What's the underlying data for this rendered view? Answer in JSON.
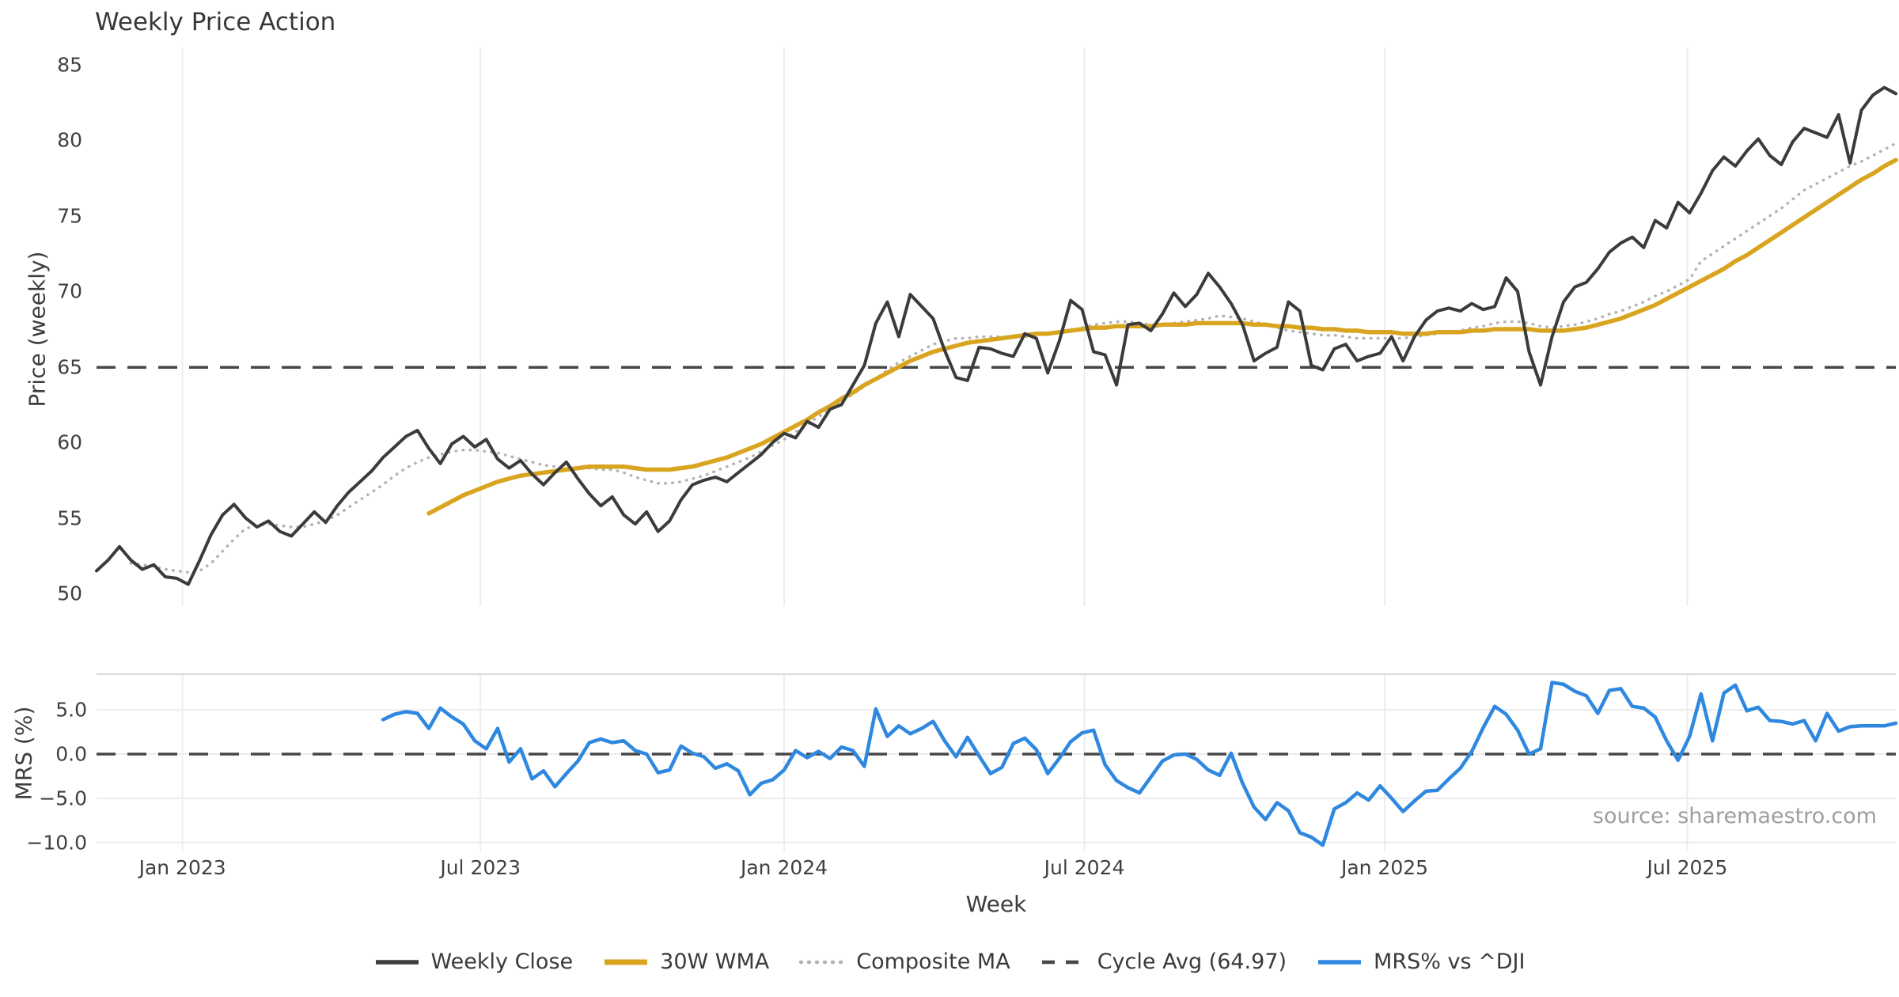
{
  "title": "Weekly Price Action",
  "source": "source: sharemaestro.com",
  "colors": {
    "close": "#3b3b3b",
    "wma": "#d9a521",
    "composite": "#b3b3b3",
    "cycle": "#474747",
    "mrs": "#2f88e0",
    "grid_vertical": "#ededf1",
    "grid_horizontal": "#ececec",
    "panel_spine": "#d9d9de",
    "text": "#3a3a3a",
    "source_text": "#9e9ea2"
  },
  "legend": [
    {
      "label": "Weekly Close",
      "style": "solid",
      "color_key": "close"
    },
    {
      "label": "30W WMA",
      "style": "solid-thick",
      "color_key": "wma"
    },
    {
      "label": "Composite MA",
      "style": "dotted",
      "color_key": "composite"
    },
    {
      "label": "Cycle Avg (64.97)",
      "style": "dashed",
      "color_key": "cycle"
    },
    {
      "label": "MRS% vs ^DJI",
      "style": "solid",
      "color_key": "mrs"
    }
  ],
  "chart_data": {
    "type": "line",
    "title": "Weekly Price Action",
    "x_axis": {
      "label": "Week",
      "unit": "week-index (weekly data, starts mid-Nov 2022)",
      "range": [
        0,
        157
      ],
      "ticks": [
        {
          "label": "Jan 2023",
          "week": 7.5
        },
        {
          "label": "Jul 2023",
          "week": 33.5
        },
        {
          "label": "Jan 2024",
          "week": 60.0
        },
        {
          "label": "Jul 2024",
          "week": 86.2
        },
        {
          "label": "Jan 2025",
          "week": 112.4
        },
        {
          "label": "Jul 2025",
          "week": 138.8
        }
      ],
      "grid": true
    },
    "panels": [
      {
        "id": "price",
        "ylabel": "Price (weekly)",
        "ylim": [
          50,
          85
        ],
        "yticks": [
          {
            "label": "85",
            "value": 85
          },
          {
            "label": "80",
            "value": 80
          },
          {
            "label": "75",
            "value": 75
          },
          {
            "label": "70",
            "value": 70
          },
          {
            "label": "65",
            "value": 65
          },
          {
            "label": "60",
            "value": 60
          },
          {
            "label": "55",
            "value": 55
          },
          {
            "label": "50",
            "value": 50
          }
        ],
        "ref_lines": [
          {
            "name": "Cycle Avg (64.97)",
            "value": 64.97,
            "style": "dashed",
            "color_key": "cycle"
          }
        ],
        "series": [
          {
            "name": "Weekly Close",
            "color_key": "close",
            "style": "solid",
            "width": 4,
            "start_week": 0,
            "values": [
              51.5,
              52.2,
              53.1,
              52.2,
              51.6,
              51.9,
              51.1,
              51.0,
              50.6,
              52.2,
              53.9,
              55.2,
              55.9,
              55.0,
              54.4,
              54.8,
              54.1,
              53.8,
              54.6,
              55.4,
              54.7,
              55.8,
              56.7,
              57.4,
              58.1,
              59.0,
              59.7,
              60.4,
              60.8,
              59.6,
              58.6,
              59.9,
              60.4,
              59.7,
              60.2,
              58.9,
              58.3,
              58.8,
              57.9,
              57.2,
              58.0,
              58.7,
              57.6,
              56.6,
              55.8,
              56.4,
              55.2,
              54.6,
              55.4,
              54.1,
              54.8,
              56.2,
              57.2,
              57.5,
              57.7,
              57.4,
              58.0,
              58.6,
              59.2,
              60.0,
              60.6,
              60.3,
              61.4,
              61.0,
              62.2,
              62.5,
              63.8,
              65.1,
              67.9,
              69.3,
              67.0,
              69.8,
              69.0,
              68.2,
              66.1,
              64.3,
              64.1,
              66.3,
              66.2,
              65.9,
              65.7,
              67.2,
              66.9,
              64.6,
              66.7,
              69.4,
              68.8,
              66.0,
              65.8,
              63.8,
              67.8,
              67.9,
              67.4,
              68.5,
              69.9,
              69.0,
              69.8,
              71.2,
              70.3,
              69.2,
              67.8,
              65.4,
              65.9,
              66.3,
              69.3,
              68.7,
              65.1,
              64.8,
              66.2,
              66.5,
              65.4,
              65.7,
              65.9,
              67.0,
              65.4,
              67.0,
              68.1,
              68.7,
              68.9,
              68.7,
              69.2,
              68.8,
              69.0,
              70.9,
              70.0,
              66.0,
              63.8,
              67.0,
              69.3,
              70.3,
              70.6,
              71.5,
              72.6,
              73.2,
              73.6,
              72.9,
              74.7,
              74.2,
              75.9,
              75.2,
              76.5,
              78.0,
              78.9,
              78.3,
              79.3,
              80.1,
              79.0,
              78.4,
              79.9,
              80.8,
              80.5,
              80.2,
              81.7,
              78.5,
              82.0,
              83.0,
              83.5,
              83.1
            ]
          },
          {
            "name": "30W WMA",
            "color_key": "wma",
            "style": "solid",
            "width": 5.5,
            "start_week": 29,
            "values": [
              55.3,
              55.7,
              56.1,
              56.5,
              56.8,
              57.1,
              57.4,
              57.6,
              57.8,
              57.9,
              58.0,
              58.1,
              58.2,
              58.3,
              58.4,
              58.4,
              58.4,
              58.4,
              58.3,
              58.2,
              58.2,
              58.2,
              58.3,
              58.4,
              58.6,
              58.8,
              59.0,
              59.3,
              59.6,
              59.9,
              60.3,
              60.7,
              61.1,
              61.5,
              62.0,
              62.4,
              62.9,
              63.3,
              63.8,
              64.2,
              64.6,
              65.0,
              65.4,
              65.7,
              66.0,
              66.2,
              66.4,
              66.6,
              66.7,
              66.8,
              66.9,
              67.0,
              67.1,
              67.2,
              67.2,
              67.3,
              67.4,
              67.5,
              67.6,
              67.6,
              67.7,
              67.7,
              67.7,
              67.7,
              67.8,
              67.8,
              67.8,
              67.9,
              67.9,
              67.9,
              67.9,
              67.9,
              67.8,
              67.8,
              67.7,
              67.7,
              67.6,
              67.6,
              67.5,
              67.5,
              67.4,
              67.4,
              67.3,
              67.3,
              67.3,
              67.2,
              67.2,
              67.2,
              67.3,
              67.3,
              67.3,
              67.4,
              67.4,
              67.5,
              67.5,
              67.5,
              67.5,
              67.4,
              67.4,
              67.4,
              67.5,
              67.6,
              67.8,
              68.0,
              68.2,
              68.5,
              68.8,
              69.1,
              69.5,
              69.9,
              70.3,
              70.7,
              71.1,
              71.5,
              72.0,
              72.4,
              72.9,
              73.4,
              73.9,
              74.4,
              74.9,
              75.4,
              75.9,
              76.4,
              76.9,
              77.4,
              77.8,
              78.3,
              78.7
            ]
          },
          {
            "name": "Composite MA",
            "color_key": "composite",
            "style": "dotted",
            "width": 3.5,
            "start_week": 3,
            "values": [
              52.0,
              51.9,
              51.8,
              51.6,
              51.5,
              51.4,
              51.5,
              52.0,
              52.8,
              53.6,
              54.3,
              54.5,
              54.6,
              54.5,
              54.4,
              54.4,
              54.6,
              54.8,
              55.2,
              55.7,
              56.2,
              56.7,
              57.2,
              57.8,
              58.3,
              58.7,
              59.0,
              59.2,
              59.4,
              59.5,
              59.5,
              59.4,
              59.3,
              59.1,
              58.9,
              58.7,
              58.5,
              58.4,
              58.3,
              58.3,
              58.3,
              58.2,
              58.2,
              58.0,
              57.7,
              57.5,
              57.3,
              57.3,
              57.4,
              57.6,
              57.8,
              58.1,
              58.4,
              58.7,
              59.0,
              59.4,
              59.8,
              60.2,
              60.7,
              61.2,
              61.7,
              62.2,
              62.7,
              63.2,
              63.7,
              64.2,
              64.8,
              65.3,
              65.7,
              66.1,
              66.5,
              66.7,
              66.9,
              66.9,
              67.0,
              67.0,
              67.0,
              67.0,
              67.0,
              67.1,
              67.2,
              67.3,
              67.4,
              67.6,
              67.8,
              67.9,
              68.0,
              68.0,
              67.9,
              67.8,
              67.8,
              67.9,
              68.0,
              68.1,
              68.2,
              68.4,
              68.3,
              68.2,
              68.0,
              67.8,
              67.6,
              67.4,
              67.3,
              67.2,
              67.1,
              67.1,
              67.0,
              66.9,
              66.9,
              66.9,
              66.9,
              66.9,
              67.0,
              67.1,
              67.2,
              67.3,
              67.4,
              67.6,
              67.7,
              67.9,
              68.0,
              68.0,
              67.9,
              67.7,
              67.6,
              67.7,
              67.8,
              68.0,
              68.2,
              68.5,
              68.7,
              69.0,
              69.3,
              69.7,
              70.0,
              70.4,
              70.8,
              72.0,
              72.5,
              73.0,
              73.5,
              74.0,
              74.5,
              75.0,
              75.5,
              76.1,
              76.7,
              77.1,
              77.5,
              77.9,
              78.3,
              78.6,
              79.0,
              79.4,
              79.8
            ]
          }
        ]
      },
      {
        "id": "mrs",
        "ylabel": "MRS (%)",
        "ylim": [
          -10,
          5
        ],
        "panel_value_range": [
          -10.9,
          9.1
        ],
        "yticks": [
          {
            "label": "5.0",
            "value": 5
          },
          {
            "label": "0.0",
            "value": 0
          },
          {
            "label": "−5.0",
            "value": -5
          },
          {
            "label": "−10.0",
            "value": -10
          }
        ],
        "ref_lines": [
          {
            "name": "Zero line",
            "value": 0,
            "style": "dashed",
            "color_key": "cycle"
          }
        ],
        "series": [
          {
            "name": "MRS% vs ^DJI",
            "color_key": "mrs",
            "style": "solid",
            "width": 4.5,
            "start_week": 25,
            "values": [
              3.9,
              4.5,
              4.8,
              4.6,
              2.9,
              5.2,
              4.2,
              3.4,
              1.5,
              0.6,
              2.9,
              -0.9,
              0.6,
              -2.8,
              -1.9,
              -3.7,
              -2.2,
              -0.8,
              1.3,
              1.7,
              1.3,
              1.5,
              0.4,
              0.0,
              -2.1,
              -1.8,
              0.9,
              0.1,
              -0.3,
              -1.6,
              -1.1,
              -1.9,
              -4.6,
              -3.3,
              -2.9,
              -1.8,
              0.4,
              -0.4,
              0.3,
              -0.5,
              0.8,
              0.4,
              -1.4,
              5.1,
              2.0,
              3.2,
              2.3,
              2.9,
              3.7,
              1.5,
              -0.3,
              1.9,
              -0.2,
              -2.2,
              -1.5,
              1.2,
              1.8,
              0.5,
              -2.2,
              -0.5,
              1.4,
              2.4,
              2.7,
              -1.2,
              -3.0,
              -3.8,
              -4.4,
              -2.6,
              -0.8,
              -0.1,
              0.0,
              -0.6,
              -1.8,
              -2.4,
              0.1,
              -3.3,
              -6.0,
              -7.4,
              -5.5,
              -6.4,
              -8.9,
              -9.4,
              -10.3,
              -6.2,
              -5.5,
              -4.4,
              -5.2,
              -3.6,
              -5.0,
              -6.5,
              -5.3,
              -4.2,
              -4.1,
              -2.8,
              -1.6,
              0.3,
              3.0,
              5.4,
              4.5,
              2.7,
              0.0,
              0.6,
              8.1,
              7.9,
              7.1,
              6.6,
              4.6,
              7.2,
              7.4,
              5.4,
              5.2,
              4.2,
              1.5,
              -0.7,
              2.0,
              6.8,
              1.5,
              6.9,
              7.8,
              4.9,
              5.3,
              3.8,
              3.7,
              3.4,
              3.8,
              1.5,
              4.6,
              2.6,
              3.1,
              3.2,
              3.2,
              3.2,
              3.5
            ]
          }
        ]
      }
    ]
  }
}
